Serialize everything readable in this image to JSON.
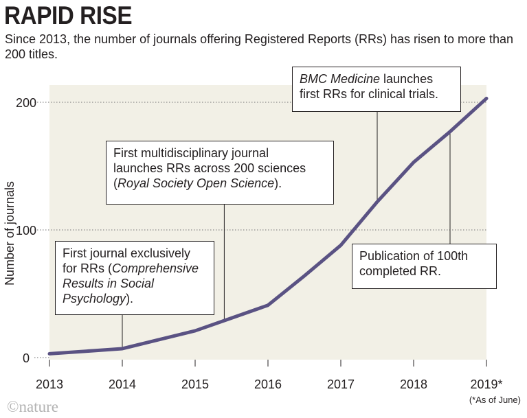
{
  "header": {
    "title": "RAPID RISE",
    "subtitle": "Since 2013, the number of journals offering Registered Reports (RRs) has risen to more than 200 titles."
  },
  "colors": {
    "plot_background": "#f2f0e6",
    "line": "#5a5283",
    "gridline": "#8a8a8a",
    "text": "#231f20",
    "logo": "#b3b3b3"
  },
  "chart_data": {
    "type": "line",
    "title": "RAPID RISE",
    "subtitle": "Since 2013, the number of journals offering Registered Reports (RRs) has risen to more than 200 titles.",
    "xlabel": "",
    "ylabel": "Number of journals",
    "x_ticks": [
      "2013",
      "2014",
      "2015",
      "2016",
      "2017",
      "2018",
      "2019*"
    ],
    "y_ticks": [
      "0",
      "100",
      "200"
    ],
    "xlim": [
      2013,
      2019
    ],
    "ylim": [
      0,
      215
    ],
    "grid": "horizontal dotted at 100 and 200",
    "series": [
      {
        "x": [
          2013.0,
          2013.5,
          2014.0,
          2014.5,
          2015.0,
          2015.5,
          2016.0,
          2016.5,
          2017.0,
          2017.5,
          2018.0,
          2018.5,
          2019.0
        ],
        "y": [
          3,
          5,
          7,
          14,
          21,
          31,
          41,
          64,
          88,
          122,
          153,
          177,
          203
        ]
      }
    ],
    "annotations": [
      {
        "x": 2014.0,
        "lines": [
          [
            "First journal exclusively"
          ],
          [
            "for RRs (",
            "Comprehensive",
            ""
          ],
          [
            "",
            "Results in Social",
            ""
          ],
          [
            "",
            "Psychology",
            ")."
          ]
        ]
      },
      {
        "x": 2015.4,
        "lines": [
          [
            "First multidisciplinary journal"
          ],
          [
            "launches RRs across 200 sciences"
          ],
          [
            "(",
            "Royal Society Open Science",
            ")."
          ]
        ]
      },
      {
        "x": 2017.5,
        "lines": [
          [
            "",
            "BMC Medicine",
            " launches"
          ],
          [
            "first RRs for clinical trials."
          ]
        ]
      },
      {
        "x": 2018.5,
        "lines": [
          [
            "Publication of 100th"
          ],
          [
            "completed RR."
          ]
        ]
      }
    ],
    "footnote": "(*As of June)"
  },
  "footer": {
    "note": "(*As of June)",
    "logo": "©nature"
  }
}
